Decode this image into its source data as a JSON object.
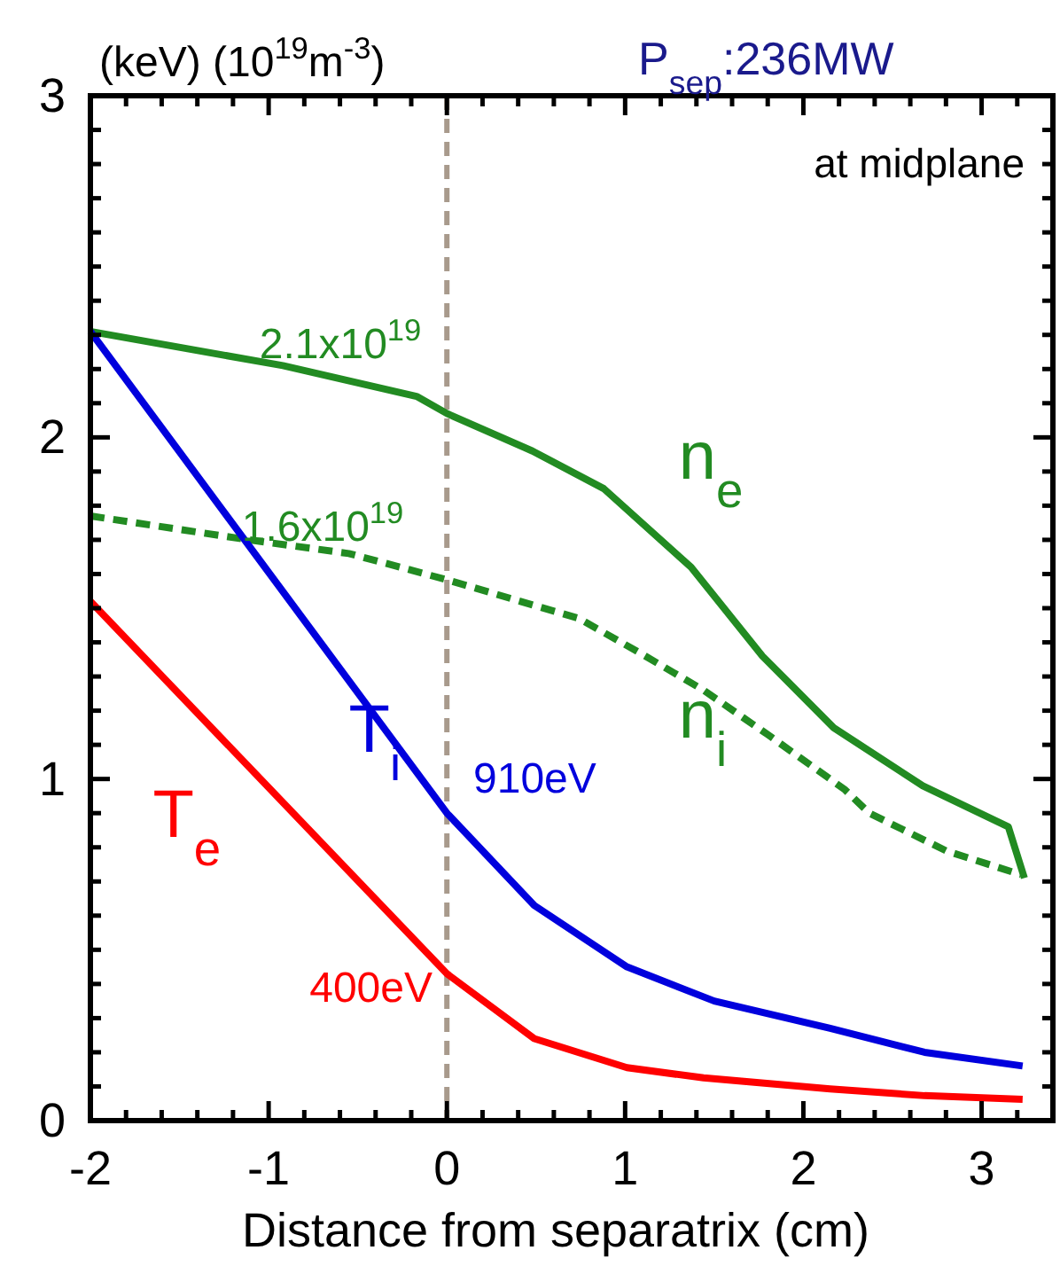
{
  "chart_data": {
    "type": "line",
    "title": "P$_{sep}$:236MW",
    "xlabel": "Distance from separatrix (cm)",
    "ylabel": "(keV) (10$^{19}$m$^{-3}$)",
    "xlim": [
      -2,
      3.4
    ],
    "ylim": [
      0,
      3
    ],
    "xticks": [
      -2,
      {
        "value": -1.8,
        "label": null
      },
      {
        "value": -1.6,
        "label": null
      },
      {
        "value": -1.4,
        "label": null
      },
      {
        "value": -1.2,
        "label": null
      },
      -1,
      {
        "value": -0.8,
        "label": null
      },
      {
        "value": -0.6,
        "label": null
      },
      {
        "value": -0.4,
        "label": null
      },
      {
        "value": -0.2,
        "label": null
      },
      0,
      {
        "value": 0.2,
        "label": null
      },
      {
        "value": 0.4,
        "label": null
      },
      {
        "value": 0.6,
        "label": null
      },
      {
        "value": 0.8,
        "label": null
      },
      1,
      {
        "value": 1.2,
        "label": null
      },
      {
        "value": 1.4,
        "label": null
      },
      {
        "value": 1.6,
        "label": null
      },
      {
        "value": 1.8,
        "label": null
      },
      2,
      {
        "value": 2.2,
        "label": null
      },
      {
        "value": 2.4,
        "label": null
      },
      {
        "value": 2.6,
        "label": null
      },
      {
        "value": 2.8,
        "label": null
      },
      3,
      {
        "value": 3.2,
        "label": null
      }
    ],
    "yticks": [
      0,
      {
        "value": 0.1,
        "label": null
      },
      {
        "value": 0.2,
        "label": null
      },
      {
        "value": 0.3,
        "label": null
      },
      {
        "value": 0.4,
        "label": null
      },
      {
        "value": 0.5,
        "label": null
      },
      {
        "value": 0.6,
        "label": null
      },
      {
        "value": 0.7,
        "label": null
      },
      {
        "value": 0.8,
        "label": null
      },
      {
        "value": 0.9,
        "label": null
      },
      1,
      {
        "value": 1.1,
        "label": null
      },
      {
        "value": 1.2,
        "label": null
      },
      {
        "value": 1.3,
        "label": null
      },
      {
        "value": 1.4,
        "label": null
      },
      {
        "value": 1.5,
        "label": null
      },
      {
        "value": 1.6,
        "label": null
      },
      {
        "value": 1.7,
        "label": null
      },
      {
        "value": 1.8,
        "label": null
      },
      {
        "value": 1.9,
        "label": null
      },
      2,
      {
        "value": 2.1,
        "label": null
      },
      {
        "value": 2.2,
        "label": null
      },
      {
        "value": 2.3,
        "label": null
      },
      {
        "value": 2.4,
        "label": null
      },
      {
        "value": 2.5,
        "label": null
      },
      {
        "value": 2.6,
        "label": null
      },
      {
        "value": 2.7,
        "label": null
      },
      {
        "value": 2.8,
        "label": null
      },
      {
        "value": 2.9,
        "label": null
      },
      3
    ],
    "grid": false,
    "series": [
      {
        "name": "n$_{e}$",
        "color": "#228b22",
        "line_style": "solid",
        "x": [
          -2,
          -0.92,
          -0.17,
          0,
          0.48,
          0.88,
          1.37,
          1.77,
          2.17,
          2.67,
          3.15,
          3.24
        ],
        "values": [
          2.31,
          2.21,
          2.12,
          2.07,
          1.96,
          1.85,
          1.62,
          1.36,
          1.15,
          0.98,
          0.86,
          0.71
        ]
      },
      {
        "name": "n$_{i}$",
        "color": "#228b22",
        "line_style": "dashed",
        "x": [
          -2,
          -1.11,
          -0.55,
          -0.19,
          0.02,
          0.74,
          1.08,
          1.44,
          1.8,
          2.23,
          2.37,
          2.8,
          3.22
        ],
        "values": [
          1.77,
          1.7,
          1.66,
          1.61,
          1.58,
          1.47,
          1.37,
          1.26,
          1.13,
          0.97,
          0.9,
          0.79,
          0.72
        ]
      },
      {
        "name": "T$_{i}$",
        "color": "#0000dd",
        "line_style": "solid",
        "x": [
          -2,
          0,
          0.49,
          1.01,
          1.5,
          2.15,
          2.68,
          3.23
        ],
        "values": [
          2.31,
          0.9,
          0.63,
          0.45,
          0.35,
          0.27,
          0.2,
          0.16
        ]
      },
      {
        "name": "T$_{e}$",
        "color": "#ff0000",
        "line_style": "solid",
        "x": [
          -2,
          0,
          0.49,
          1.01,
          1.44,
          2.15,
          2.68,
          3.23
        ],
        "values": [
          1.52,
          0.43,
          0.24,
          0.155,
          0.125,
          0.093,
          0.073,
          0.062
        ]
      }
    ],
    "ref_lines": [
      {
        "axis": "x",
        "value": 0,
        "color": "#a89a8c",
        "line_style": "dashed"
      }
    ],
    "annotations": [
      "at midplane",
      "2.1x10$^{19}$",
      "1.6x10$^{19}$",
      "910eV",
      "400eV"
    ]
  }
}
